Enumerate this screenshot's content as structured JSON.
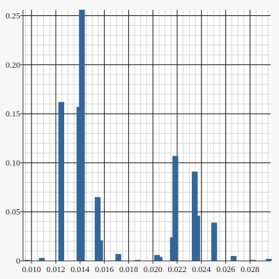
{
  "chart_data": {
    "type": "bar",
    "title": "",
    "xlabel": "",
    "ylabel": "",
    "xlim": [
      0.0093,
      0.0297
    ],
    "ylim": [
      0,
      0.256
    ],
    "grid": {
      "major": true,
      "minor": true
    },
    "bar_color": "#336699",
    "bar_width": 0.00048,
    "x_ticks": [
      "0.010",
      "0.012",
      "0.014",
      "0.016",
      "0.018",
      "0.020",
      "0.022",
      "0.024",
      "0.026",
      "0.028"
    ],
    "x_tick_values": [
      0.01,
      0.012,
      0.014,
      0.016,
      0.018,
      0.02,
      0.022,
      0.024,
      0.026,
      0.028
    ],
    "y_ticks": [
      "0",
      "0.05",
      "0.10",
      "0.15",
      "0.20",
      "0.25"
    ],
    "y_tick_values": [
      0,
      0.05,
      0.1,
      0.15,
      0.2,
      0.25
    ],
    "x": [
      0.00965,
      0.01085,
      0.01245,
      0.01395,
      0.01415,
      0.01545,
      0.01565,
      0.01715,
      0.01875,
      0.02035,
      0.02055,
      0.02165,
      0.02185,
      0.02345,
      0.02365,
      0.02505,
      0.02665,
      0.02825,
      0.02955
    ],
    "values": [
      0.001,
      0.003,
      0.162,
      0.157,
      0.256,
      0.065,
      0.021,
      0.007,
      0.001,
      0.006,
      0.004,
      0.024,
      0.107,
      0.091,
      0.046,
      0.039,
      0.005,
      0.001,
      0.002
    ]
  }
}
